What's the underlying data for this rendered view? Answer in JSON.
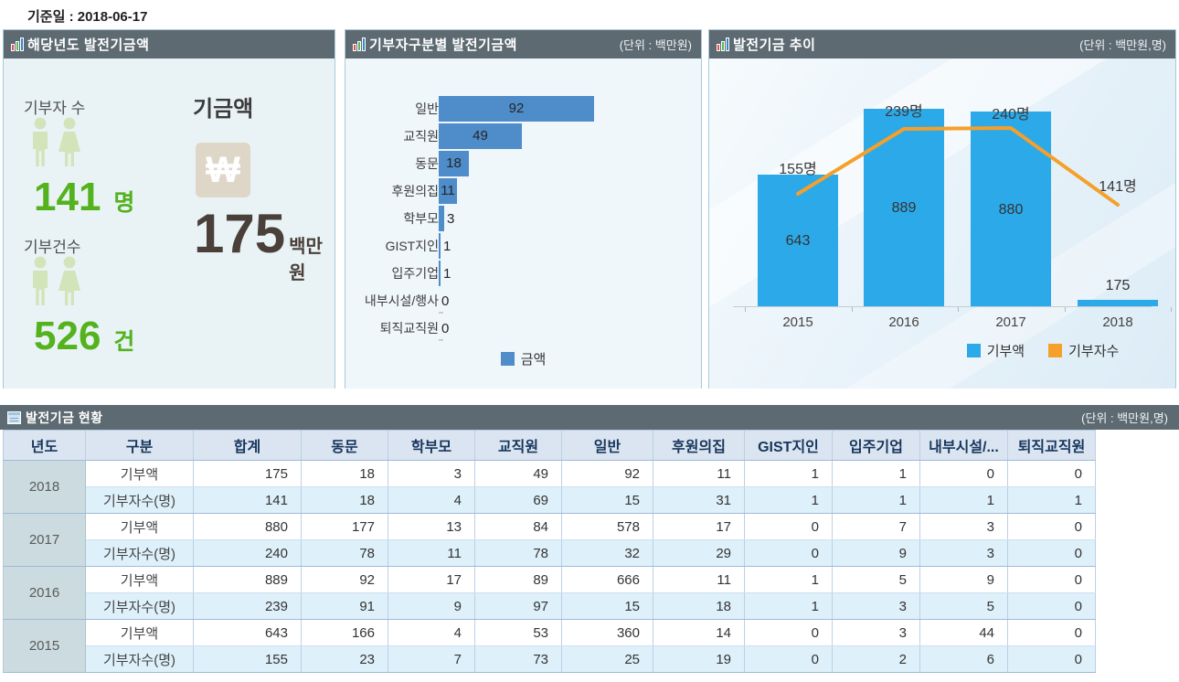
{
  "page": {
    "ref_date_label": "기준일 : 2018-06-17"
  },
  "colors": {
    "panel_header_bg": "#5d6a72",
    "kpi_green": "#53b21d",
    "kpi_icon_green": "#d2e4ba",
    "won_box_beige": "#ded7c8",
    "fund_amount_brown": "#4a3f39",
    "hbar_blue": "#4e8cca",
    "trend_bar_blue": "#2ca9e8",
    "trend_line_orange": "#f5a02a",
    "table_header_bg": "#dbe5f1",
    "table_alt_row_bg": "#def0f9",
    "table_year_cell_bg": "#cbdbdf"
  },
  "panel_current": {
    "title": "해당년도 발전기금액",
    "donors": {
      "label": "기부자 수",
      "value": "141",
      "unit": "명"
    },
    "fund": {
      "label": "기금액",
      "currency_symbol": "₩",
      "value": "175",
      "unit": "백만원"
    },
    "donations": {
      "label": "기부건수",
      "value": "526",
      "unit": "건"
    }
  },
  "panel_by_type": {
    "title": "기부자구분별 발전기금액",
    "unit": "(단위 : 백만원)"
  },
  "panel_trend": {
    "title": "발전기금 추이",
    "unit": "(단위 : 백만원,명)"
  },
  "chart_data": [
    {
      "type": "bar",
      "orientation": "horizontal",
      "title": "기부자구분별 발전기금액",
      "unit_label": "(단위 : 백만원)",
      "categories": [
        "일반",
        "교직원",
        "동문",
        "후원의집",
        "학부모",
        "GIST지인",
        "입주기업",
        "내부시설/행사",
        "퇴직교직원"
      ],
      "values": [
        92,
        49,
        18,
        11,
        3,
        1,
        1,
        0,
        0
      ],
      "series_label": "금액",
      "xlim": [
        0,
        100
      ],
      "legend_position": "bottom",
      "grid": false
    },
    {
      "type": "combo",
      "title": "발전기금 추이",
      "unit_label": "(단위 : 백만원,명)",
      "categories": [
        "2015",
        "2016",
        "2017",
        "2018"
      ],
      "series": [
        {
          "name": "기부액",
          "type": "bar",
          "values": [
            643,
            889,
            880,
            175
          ],
          "data_labels": [
            "643",
            "889",
            "880",
            "175"
          ],
          "color": "#2ca9e8"
        },
        {
          "name": "기부자수",
          "type": "line",
          "values": [
            155,
            239,
            240,
            141
          ],
          "data_labels": [
            "155명",
            "239명",
            "240명",
            "141명"
          ],
          "color": "#f5a02a"
        }
      ],
      "bar_ylim": [
        150,
        889
      ],
      "line_ylim": [
        10,
        325
      ],
      "legend_position": "bottom",
      "grid": false
    }
  ],
  "table_section": {
    "title": "발전기금 현황",
    "unit": "(단위 : 백만원,명)",
    "columns": [
      "년도",
      "구분",
      "합계",
      "동문",
      "학부모",
      "교직원",
      "일반",
      "후원의집",
      "GIST지인",
      "입주기업",
      "내부시설/...",
      "퇴직교직원"
    ],
    "rows": [
      {
        "year": "2018",
        "metric": "기부액",
        "values": [
          175,
          18,
          3,
          49,
          92,
          11,
          1,
          1,
          0,
          0
        ]
      },
      {
        "year": "2018",
        "metric": "기부자수(명)",
        "values": [
          141,
          18,
          4,
          69,
          15,
          31,
          1,
          1,
          1,
          1
        ]
      },
      {
        "year": "2017",
        "metric": "기부액",
        "values": [
          880,
          177,
          13,
          84,
          578,
          17,
          0,
          7,
          3,
          0
        ]
      },
      {
        "year": "2017",
        "metric": "기부자수(명)",
        "values": [
          240,
          78,
          11,
          78,
          32,
          29,
          0,
          9,
          3,
          0
        ]
      },
      {
        "year": "2016",
        "metric": "기부액",
        "values": [
          889,
          92,
          17,
          89,
          666,
          11,
          1,
          5,
          9,
          0
        ]
      },
      {
        "year": "2016",
        "metric": "기부자수(명)",
        "values": [
          239,
          91,
          9,
          97,
          15,
          18,
          1,
          3,
          5,
          0
        ]
      },
      {
        "year": "2015",
        "metric": "기부액",
        "values": [
          643,
          166,
          4,
          53,
          360,
          14,
          0,
          3,
          44,
          0
        ]
      },
      {
        "year": "2015",
        "metric": "기부자수(명)",
        "values": [
          155,
          23,
          7,
          73,
          25,
          19,
          0,
          2,
          6,
          0
        ]
      }
    ]
  }
}
